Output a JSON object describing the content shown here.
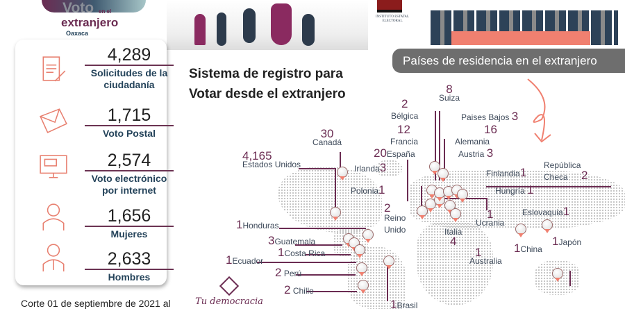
{
  "header": {
    "logo": {
      "line1": "Voto",
      "line1b": "en el",
      "line2": "extranjero",
      "line3": "Oaxaca"
    },
    "institute": "INSTITUTO ESTATAL ELECTORAL"
  },
  "stats": [
    {
      "value": "4,289",
      "label": "Solicitudes de la ciudadanía",
      "icon": "document-sign-icon"
    },
    {
      "value": "1,715",
      "label": "Voto Postal",
      "icon": "envelope-icon"
    },
    {
      "value": "2,574",
      "label": "Voto electrónico por internet",
      "icon": "computer-icon"
    },
    {
      "value": "1,656",
      "label": "Mujeres",
      "icon": "woman-icon"
    },
    {
      "value": "2,633",
      "label": "Hombres",
      "icon": "man-icon"
    }
  ],
  "title": {
    "line1": "Sistema de registro para",
    "line2": "Votar desde el extranjero"
  },
  "banner": "Países de residencia en el extranjero",
  "countries": [
    {
      "name": "Suiza",
      "count": "8"
    },
    {
      "name": "Bélgica",
      "count": "2"
    },
    {
      "name": "Paises Bajos",
      "count": "3"
    },
    {
      "name": "Francia",
      "count": "12"
    },
    {
      "name": "Alemania",
      "count": "16"
    },
    {
      "name": "España",
      "count": "20"
    },
    {
      "name": "Austria",
      "count": "3"
    },
    {
      "name": "Irlanda",
      "count": "3"
    },
    {
      "name": "Canadá",
      "count": "30"
    },
    {
      "name": "Estados Unidos",
      "count": "4,165"
    },
    {
      "name": "República Checa",
      "count": "2"
    },
    {
      "name": "Finlandia",
      "count": "1"
    },
    {
      "name": "Polonia",
      "count": "1"
    },
    {
      "name": "Hungría",
      "count": "1"
    },
    {
      "name": "Reino Unido",
      "count": "2"
    },
    {
      "name": "Ucrania",
      "count": "1"
    },
    {
      "name": "Eslovaquia",
      "count": "1"
    },
    {
      "name": "Italia",
      "count": "4"
    },
    {
      "name": "Honduras",
      "count": "1"
    },
    {
      "name": "Guatemala",
      "count": "3"
    },
    {
      "name": "Costa Rica",
      "count": "1"
    },
    {
      "name": "Ecuador",
      "count": "1"
    },
    {
      "name": "China",
      "count": "1"
    },
    {
      "name": "Japón",
      "count": "1"
    },
    {
      "name": "Australia",
      "count": "1"
    },
    {
      "name": "Perú",
      "count": "2"
    },
    {
      "name": "Chille",
      "count": "2"
    },
    {
      "name": "Brasil",
      "count": "1"
    }
  ],
  "footer": "Corte 01 de septiembre de 2021 al",
  "brand": "Tu democracia",
  "colors": {
    "accent": "#6b2c52",
    "coral": "#f08070",
    "navy": "#24435a",
    "banner": "#6e6e6e"
  }
}
